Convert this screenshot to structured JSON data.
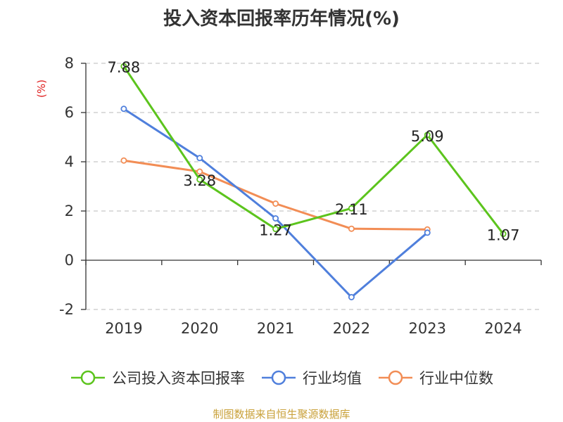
{
  "title": "投入资本回报率历年情况(%)",
  "source": "制图数据来自恒生聚源数据库",
  "chart_data": {
    "type": "line",
    "title": "投入资本回报率历年情况(%)",
    "ylabel": "(%)",
    "xlabel": "",
    "categories": [
      "2019",
      "2020",
      "2021",
      "2022",
      "2023",
      "2024"
    ],
    "ylim": [
      -2,
      8
    ],
    "yticks": [
      -2,
      0,
      2,
      4,
      6,
      8
    ],
    "grid": true,
    "legend_position": "bottom",
    "series": [
      {
        "name": "公司投入资本回报率",
        "color": "#5cc41d",
        "values": [
          7.88,
          3.28,
          1.27,
          2.11,
          5.09,
          1.07
        ],
        "labels": [
          "7.88",
          "3.28",
          "1.27",
          "2.11",
          "5.09",
          "1.07"
        ]
      },
      {
        "name": "行业均值",
        "color": "#4f7fdc",
        "values": [
          6.15,
          4.15,
          1.7,
          -1.5,
          1.12,
          null
        ]
      },
      {
        "name": "行业中位数",
        "color": "#f28d55",
        "values": [
          4.05,
          3.6,
          2.3,
          1.28,
          1.25,
          null
        ]
      }
    ]
  }
}
